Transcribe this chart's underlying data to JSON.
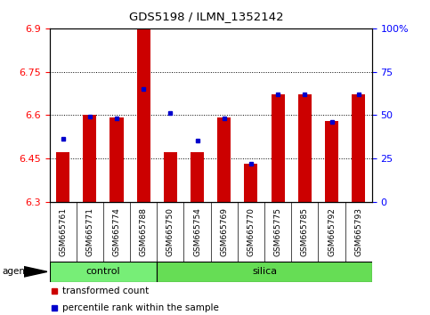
{
  "title": "GDS5198 / ILMN_1352142",
  "samples": [
    "GSM665761",
    "GSM665771",
    "GSM665774",
    "GSM665788",
    "GSM665750",
    "GSM665754",
    "GSM665769",
    "GSM665770",
    "GSM665775",
    "GSM665785",
    "GSM665792",
    "GSM665793"
  ],
  "groups": [
    "control",
    "control",
    "control",
    "control",
    "silica",
    "silica",
    "silica",
    "silica",
    "silica",
    "silica",
    "silica",
    "silica"
  ],
  "transformed_count": [
    6.47,
    6.6,
    6.59,
    6.9,
    6.47,
    6.47,
    6.59,
    6.43,
    6.67,
    6.67,
    6.58,
    6.67
  ],
  "percentile_rank": [
    36,
    49,
    48,
    65,
    51,
    35,
    48,
    22,
    62,
    62,
    46,
    62
  ],
  "y_min": 6.3,
  "y_max": 6.9,
  "y_ticks": [
    6.3,
    6.45,
    6.6,
    6.75,
    6.9
  ],
  "y_tick_labels": [
    "6.3",
    "6.45",
    "6.6",
    "6.75",
    "6.9"
  ],
  "right_yticks": [
    0,
    25,
    50,
    75,
    100
  ],
  "right_ytick_labels": [
    "0",
    "25",
    "50",
    "75",
    "100%"
  ],
  "bar_color": "#cc0000",
  "dot_color": "#0000cc",
  "control_color": "#77ee77",
  "silica_color": "#66dd55",
  "tick_bg_color": "#cccccc",
  "n_control": 4,
  "n_silica": 8,
  "bar_width": 0.5
}
